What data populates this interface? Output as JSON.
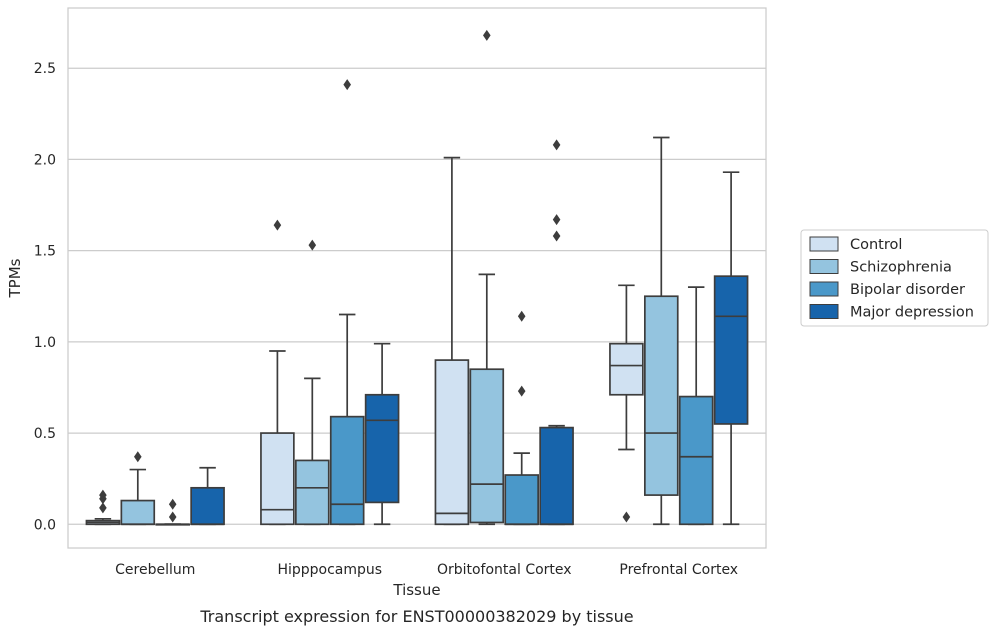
{
  "chart_data": {
    "type": "box",
    "xlabel": "Tissue",
    "ylabel": "TPMs",
    "caption": "Transcript expression for ENST00000382029 by tissue",
    "ylim": [
      -0.13,
      2.83
    ],
    "yticks": [
      0.0,
      0.5,
      1.0,
      1.5,
      2.0,
      2.5
    ],
    "ytick_labels": [
      "0.0",
      "0.5",
      "1.0",
      "1.5",
      "2.0",
      "2.5"
    ],
    "grid": "horizontal",
    "legend_position": "right",
    "categories": [
      "Cerebellum",
      "Hipppocampus",
      "Orbitofontal Cortex",
      "Prefrontal Cortex"
    ],
    "series": [
      {
        "name": "Control",
        "color": "#d0e1f2",
        "boxes": [
          {
            "q1": 0.0,
            "median": 0.01,
            "q3": 0.02,
            "whisker_low": 0.0,
            "whisker_high": 0.03,
            "outliers": [
              0.09,
              0.14,
              0.16
            ]
          },
          {
            "q1": 0.0,
            "median": 0.08,
            "q3": 0.5,
            "whisker_low": 0.0,
            "whisker_high": 0.95,
            "outliers": [
              1.64
            ]
          },
          {
            "q1": 0.0,
            "median": 0.06,
            "q3": 0.9,
            "whisker_low": 0.0,
            "whisker_high": 2.01,
            "outliers": []
          },
          {
            "q1": 0.71,
            "median": 0.87,
            "q3": 0.99,
            "whisker_low": 0.41,
            "whisker_high": 1.31,
            "outliers": [
              0.04
            ]
          }
        ]
      },
      {
        "name": "Schizophrenia",
        "color": "#94c4df",
        "boxes": [
          {
            "q1": 0.0,
            "median": 0.0,
            "q3": 0.13,
            "whisker_low": 0.0,
            "whisker_high": 0.3,
            "outliers": [
              0.37
            ]
          },
          {
            "q1": 0.0,
            "median": 0.2,
            "q3": 0.35,
            "whisker_low": 0.0,
            "whisker_high": 0.8,
            "outliers": [
              1.53
            ]
          },
          {
            "q1": 0.01,
            "median": 0.22,
            "q3": 0.85,
            "whisker_low": 0.0,
            "whisker_high": 1.37,
            "outliers": [
              2.68
            ]
          },
          {
            "q1": 0.16,
            "median": 0.5,
            "q3": 1.25,
            "whisker_low": 0.0,
            "whisker_high": 2.12,
            "outliers": []
          }
        ]
      },
      {
        "name": "Bipolar disorder",
        "color": "#4a98c9",
        "boxes": [
          {
            "q1": 0.0,
            "median": 0.0,
            "q3": 0.0,
            "whisker_low": 0.0,
            "whisker_high": 0.0,
            "outliers": [
              0.04,
              0.11
            ]
          },
          {
            "q1": 0.0,
            "median": 0.11,
            "q3": 0.59,
            "whisker_low": 0.0,
            "whisker_high": 1.15,
            "outliers": [
              2.41
            ]
          },
          {
            "q1": 0.0,
            "median": 0.0,
            "q3": 0.27,
            "whisker_low": 0.0,
            "whisker_high": 0.39,
            "outliers": [
              0.73,
              1.14
            ]
          },
          {
            "q1": 0.0,
            "median": 0.37,
            "q3": 0.7,
            "whisker_low": 0.0,
            "whisker_high": 1.3,
            "outliers": []
          }
        ]
      },
      {
        "name": "Major depression",
        "color": "#1764ab",
        "boxes": [
          {
            "q1": 0.0,
            "median": 0.0,
            "q3": 0.2,
            "whisker_low": 0.0,
            "whisker_high": 0.31,
            "outliers": []
          },
          {
            "q1": 0.12,
            "median": 0.57,
            "q3": 0.71,
            "whisker_low": 0.0,
            "whisker_high": 0.99,
            "outliers": []
          },
          {
            "q1": 0.0,
            "median": 0.0,
            "q3": 0.53,
            "whisker_low": 0.0,
            "whisker_high": 0.54,
            "outliers": [
              1.58,
              1.67,
              2.08
            ]
          },
          {
            "q1": 0.55,
            "median": 1.14,
            "q3": 1.36,
            "whisker_low": 0.0,
            "whisker_high": 1.93,
            "outliers": []
          }
        ]
      }
    ]
  }
}
